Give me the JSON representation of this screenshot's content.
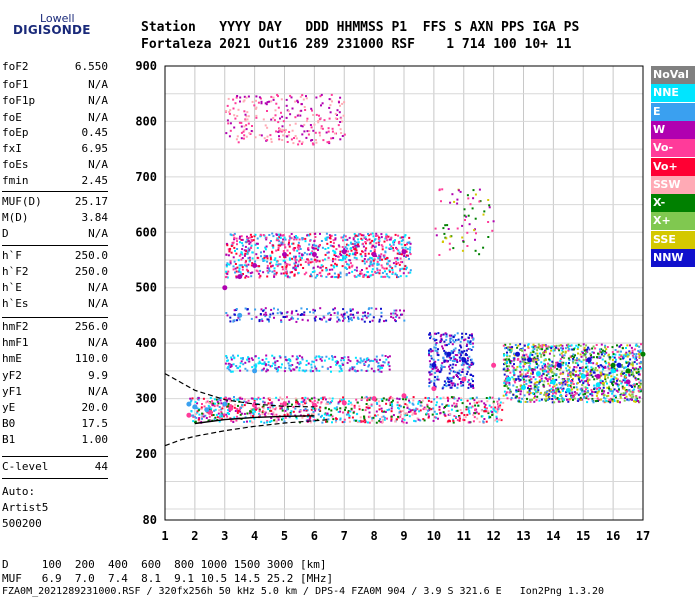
{
  "logo": {
    "top": "Lowell",
    "bottom": "DIGISONDE"
  },
  "header": {
    "line1": "Station   YYYY DAY   DDD HHMMSS P1  FFS S AXN PPS IGA PS",
    "line2": "Fortaleza 2021 Out16 289 231000 RSF    1 714 100 10+ 11"
  },
  "params": [
    {
      "k": "foF2",
      "v": "6.550"
    },
    {
      "k": "foF1",
      "v": "N/A"
    },
    {
      "k": "foF1p",
      "v": "N/A"
    },
    {
      "k": "foE",
      "v": "N/A"
    },
    {
      "k": "foEp",
      "v": "0.45"
    },
    {
      "k": "fxI",
      "v": "6.95"
    },
    {
      "k": "foEs",
      "v": "N/A"
    },
    {
      "k": "fmin",
      "v": "2.45"
    },
    {
      "k": "MUF(D)",
      "v": "25.17"
    },
    {
      "k": "M(D)",
      "v": "3.84"
    },
    {
      "k": "D",
      "v": "N/A"
    },
    {
      "k": "h`F",
      "v": "250.0"
    },
    {
      "k": "h`F2",
      "v": "250.0"
    },
    {
      "k": "h`E",
      "v": "N/A"
    },
    {
      "k": "h`Es",
      "v": "N/A"
    },
    {
      "k": "hmF2",
      "v": "256.0"
    },
    {
      "k": "hmF1",
      "v": "N/A"
    },
    {
      "k": "hmE",
      "v": "110.0"
    },
    {
      "k": "yF2",
      "v": "9.9"
    },
    {
      "k": "yF1",
      "v": "N/A"
    },
    {
      "k": "yE",
      "v": "20.0"
    },
    {
      "k": "B0",
      "v": "17.5"
    },
    {
      "k": "B1",
      "v": "1.00"
    },
    {
      "k": "C-level",
      "v": "44"
    }
  ],
  "auto": {
    "l1": "Auto:",
    "l2": "Artist5",
    "l3": "500200"
  },
  "legend": [
    {
      "label": "NoVal",
      "color": "#808080"
    },
    {
      "label": "NNE",
      "color": "#00e5ff"
    },
    {
      "label": "E",
      "color": "#3aa0f0"
    },
    {
      "label": "W",
      "color": "#b000b0"
    },
    {
      "label": "Vo-",
      "color": "#ff3b9a"
    },
    {
      "label": "Vo+",
      "color": "#ff0033"
    },
    {
      "label": "SSW",
      "color": "#ffaab5"
    },
    {
      "label": "X-",
      "color": "#008000"
    },
    {
      "label": "X+",
      "color": "#80c850"
    },
    {
      "label": "SSE",
      "color": "#d4c800"
    },
    {
      "label": "NNW",
      "color": "#1010cc"
    }
  ],
  "footer": {
    "d_line": "D     100  200  400  600  800 1000 1500 3000 [km]",
    "muf_line": "MUF   6.9  7.0  7.4  8.1  9.1 10.5 14.5 25.2 [MHz]",
    "file_line": "FZA0M_2021289231000.RSF / 320fx256h 50 kHz 5.0 km / DPS-4 FZA0M 904 / 3.9 S 321.6 E   Ion2Png 1.3.20"
  },
  "chart_data": {
    "type": "scatter",
    "x_ticks": [
      "1",
      "2",
      "3",
      "4",
      "5",
      "6",
      "7",
      "8",
      "9",
      "10",
      "11",
      "12",
      "13",
      "14",
      "15",
      "16",
      "17"
    ],
    "y_ticks": [
      "200",
      "300",
      "400",
      "500",
      "600",
      "700",
      "800",
      "900"
    ],
    "y_bottom_label": "80",
    "xlim": [
      1,
      17
    ],
    "ylim": [
      80,
      900
    ],
    "grid": true,
    "legend_position": "right",
    "series": [
      {
        "name": "Vo-",
        "points": [
          [
            1.8,
            270
          ],
          [
            2.5,
            275
          ],
          [
            3.2,
            282
          ],
          [
            4.0,
            288
          ],
          [
            5.0,
            290
          ],
          [
            6.0,
            288
          ],
          [
            7.0,
            292
          ],
          [
            8.0,
            300
          ],
          [
            9.0,
            305
          ],
          [
            10.0,
            318
          ],
          [
            11.0,
            335
          ],
          [
            12.0,
            360
          ]
        ]
      },
      {
        "name": "NNE",
        "points": [
          [
            12.5,
            335
          ],
          [
            13.0,
            320
          ],
          [
            13.5,
            345
          ],
          [
            14.0,
            330
          ],
          [
            14.5,
            315
          ],
          [
            15.0,
            340
          ],
          [
            15.5,
            325
          ],
          [
            16.0,
            350
          ]
        ]
      },
      {
        "name": "NNW",
        "points": [
          [
            10.0,
            360
          ],
          [
            10.5,
            380
          ],
          [
            11.0,
            370
          ],
          [
            12.8,
            380
          ],
          [
            13.2,
            370
          ],
          [
            14.2,
            360
          ],
          [
            15.2,
            370
          ],
          [
            16.2,
            360
          ]
        ]
      },
      {
        "name": "W",
        "points": [
          [
            3.0,
            500
          ],
          [
            3.5,
            520
          ],
          [
            4.0,
            540
          ],
          [
            5.0,
            560
          ],
          [
            6.0,
            560
          ],
          [
            7.0,
            565
          ],
          [
            8.0,
            560
          ],
          [
            9.0,
            565
          ],
          [
            16.5,
            330
          ],
          [
            15.5,
            340
          ]
        ]
      },
      {
        "name": "X-",
        "points": [
          [
            16.5,
            350
          ],
          [
            17.0,
            380
          ],
          [
            16.0,
            360
          ]
        ]
      },
      {
        "name": "E",
        "points": [
          [
            1.8,
            290
          ],
          [
            2.0,
            285
          ],
          [
            2.4,
            280
          ],
          [
            4.0,
            350
          ],
          [
            3.5,
            450
          ],
          [
            3.0,
            290
          ]
        ]
      }
    ],
    "traces": {
      "model_profile": [
        [
          1.0,
          215
        ],
        [
          1.5,
          225
        ],
        [
          2.0,
          232
        ],
        [
          3.0,
          242
        ],
        [
          4.0,
          250
        ],
        [
          5.0,
          256
        ],
        [
          6.5,
          262
        ]
      ],
      "model_trace_upper": [
        [
          1.0,
          345
        ],
        [
          2.0,
          315
        ],
        [
          3.0,
          298
        ],
        [
          4.0,
          290
        ],
        [
          5.0,
          286
        ],
        [
          6.0,
          285
        ]
      ],
      "model_trace_lower": [
        [
          2.0,
          255
        ],
        [
          3.0,
          262
        ],
        [
          4.0,
          266
        ],
        [
          5.0,
          268
        ],
        [
          6.0,
          269
        ]
      ]
    }
  }
}
